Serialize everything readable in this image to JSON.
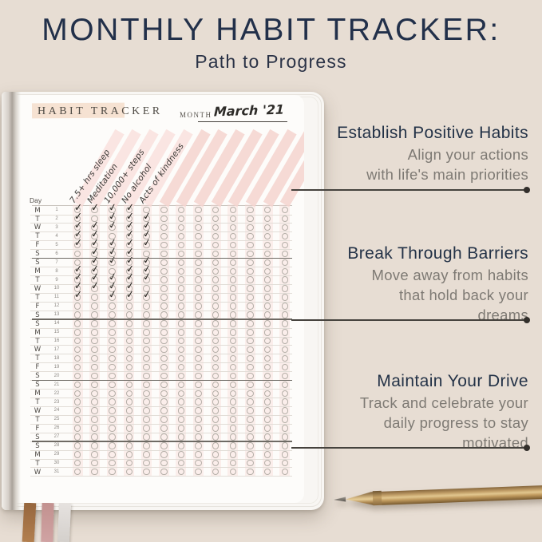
{
  "header": {
    "title": "MONTHLY HABIT TRACKER:",
    "subtitle": "Path to Progress"
  },
  "page": {
    "tracker_title": "HABIT TRACKER",
    "month_label": "MONTH",
    "month_value": "March '21",
    "day_label": "Day",
    "habits": [
      "7.5+ hrs sleep",
      "Meditation",
      "10,000+ steps",
      "No alcohol",
      "Acts of kindness"
    ],
    "total_columns": 13,
    "week_separator_after": [
      6,
      13,
      20,
      27
    ],
    "days": [
      {
        "n": 1,
        "dow": "M",
        "checks": [
          1,
          1,
          1,
          1,
          0
        ]
      },
      {
        "n": 2,
        "dow": "T",
        "checks": [
          1,
          0,
          1,
          1,
          1
        ]
      },
      {
        "n": 3,
        "dow": "W",
        "checks": [
          1,
          1,
          1,
          1,
          1
        ]
      },
      {
        "n": 4,
        "dow": "T",
        "checks": [
          1,
          1,
          0,
          1,
          1
        ]
      },
      {
        "n": 5,
        "dow": "F",
        "checks": [
          1,
          1,
          1,
          1,
          1
        ]
      },
      {
        "n": 6,
        "dow": "S",
        "checks": [
          0,
          1,
          1,
          1,
          0
        ]
      },
      {
        "n": 7,
        "dow": "S",
        "checks": [
          0,
          1,
          1,
          1,
          1
        ]
      },
      {
        "n": 8,
        "dow": "M",
        "checks": [
          1,
          1,
          0,
          1,
          1
        ]
      },
      {
        "n": 9,
        "dow": "T",
        "checks": [
          1,
          1,
          1,
          1,
          1
        ]
      },
      {
        "n": 10,
        "dow": "W",
        "checks": [
          1,
          1,
          1,
          1,
          0
        ]
      },
      {
        "n": 11,
        "dow": "T",
        "checks": [
          1,
          0,
          1,
          1,
          1
        ]
      },
      {
        "n": 12,
        "dow": "F",
        "checks": [
          0,
          0,
          0,
          0,
          0
        ]
      },
      {
        "n": 13,
        "dow": "S",
        "checks": [
          0,
          0,
          0,
          0,
          0
        ]
      },
      {
        "n": 14,
        "dow": "S",
        "checks": [
          0,
          0,
          0,
          0,
          0
        ]
      },
      {
        "n": 15,
        "dow": "M",
        "checks": [
          0,
          0,
          0,
          0,
          0
        ]
      },
      {
        "n": 16,
        "dow": "T",
        "checks": [
          0,
          0,
          0,
          0,
          0
        ]
      },
      {
        "n": 17,
        "dow": "W",
        "checks": [
          0,
          0,
          0,
          0,
          0
        ]
      },
      {
        "n": 18,
        "dow": "T",
        "checks": [
          0,
          0,
          0,
          0,
          0
        ]
      },
      {
        "n": 19,
        "dow": "F",
        "checks": [
          0,
          0,
          0,
          0,
          0
        ]
      },
      {
        "n": 20,
        "dow": "S",
        "checks": [
          0,
          0,
          0,
          0,
          0
        ]
      },
      {
        "n": 21,
        "dow": "S",
        "checks": [
          0,
          0,
          0,
          0,
          0
        ]
      },
      {
        "n": 22,
        "dow": "M",
        "checks": [
          0,
          0,
          0,
          0,
          0
        ]
      },
      {
        "n": 23,
        "dow": "T",
        "checks": [
          0,
          0,
          0,
          0,
          0
        ]
      },
      {
        "n": 24,
        "dow": "W",
        "checks": [
          0,
          0,
          0,
          0,
          0
        ]
      },
      {
        "n": 25,
        "dow": "T",
        "checks": [
          0,
          0,
          0,
          0,
          0
        ]
      },
      {
        "n": 26,
        "dow": "F",
        "checks": [
          0,
          0,
          0,
          0,
          0
        ]
      },
      {
        "n": 27,
        "dow": "S",
        "checks": [
          0,
          0,
          0,
          0,
          0
        ]
      },
      {
        "n": 28,
        "dow": "S",
        "checks": [
          0,
          0,
          0,
          0,
          0
        ]
      },
      {
        "n": 29,
        "dow": "M",
        "checks": [
          0,
          0,
          0,
          0,
          0
        ]
      },
      {
        "n": 30,
        "dow": "T",
        "checks": [
          0,
          0,
          0,
          0,
          0
        ]
      },
      {
        "n": 31,
        "dow": "W",
        "checks": [
          0,
          0,
          0,
          0,
          0
        ]
      }
    ]
  },
  "annotations": [
    {
      "heading": "Establish Positive Habits",
      "lines": [
        "Align your actions",
        "with life's main priorities"
      ]
    },
    {
      "heading": "Break Through Barriers",
      "lines": [
        "Move away from habits",
        "that hold back your",
        "dreams"
      ]
    },
    {
      "heading": "Maintain Your Drive",
      "lines": [
        "Track and celebrate your",
        "daily progress to stay",
        "motivated"
      ]
    }
  ],
  "icons": {
    "check_mark": "✓"
  },
  "colors": {
    "background_beige": "#e7ddd3",
    "navy_text": "#22304a",
    "gray_text": "#7e7a74",
    "stripe_pink": "#f5d3ce",
    "band_peach": "#f6e2d2",
    "pen_gold": "#c3a069",
    "ribbon_brown": "#a5744a",
    "ribbon_pink": "#c89a9b",
    "ribbon_white": "#e0dcda"
  }
}
